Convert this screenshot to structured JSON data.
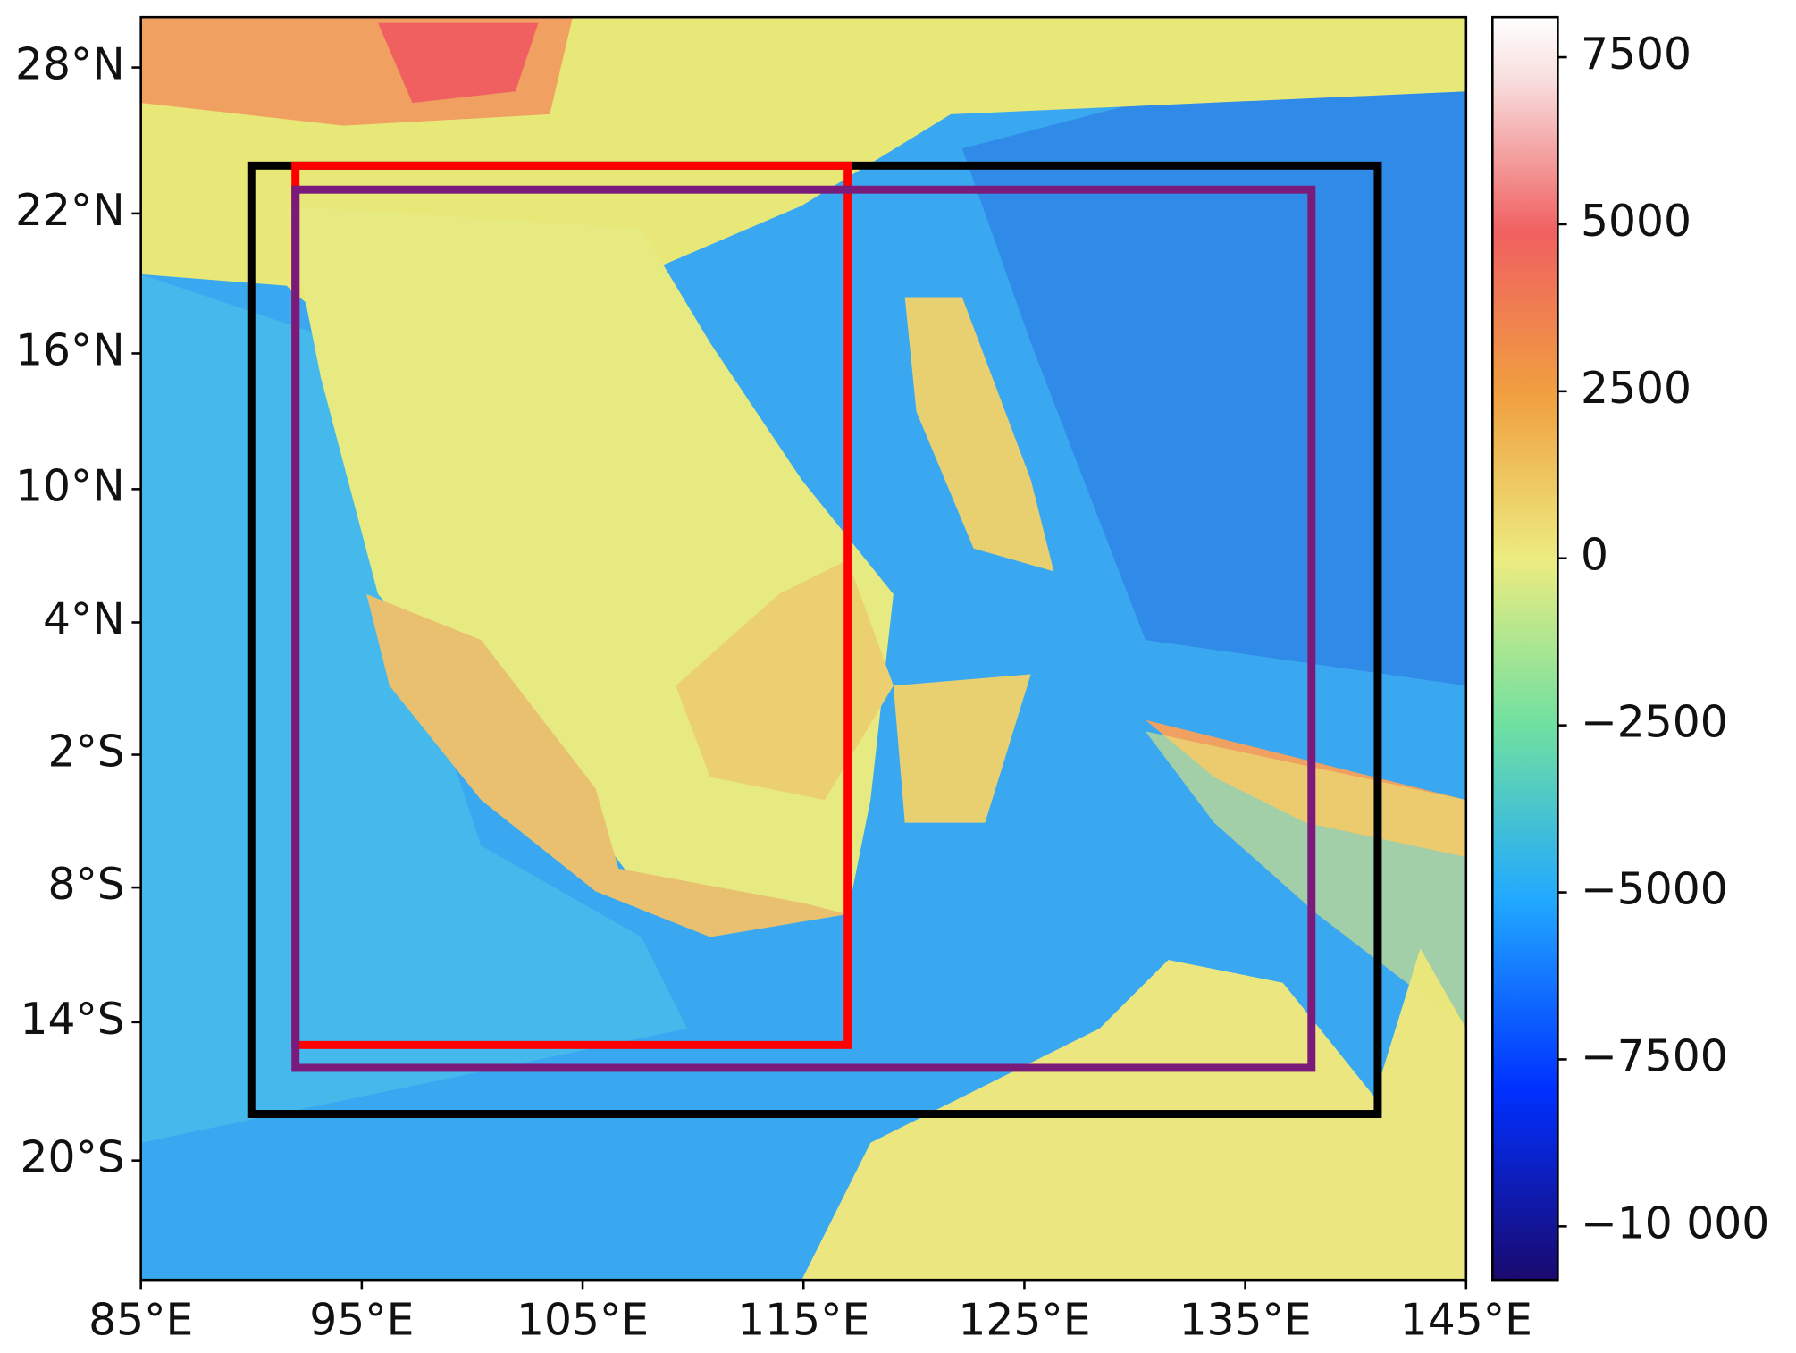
{
  "chart_data": {
    "type": "map",
    "xlim": [
      85,
      145
    ],
    "ylim": [
      -25,
      30
    ],
    "xticks": [
      {
        "value": 85,
        "label": "85°E"
      },
      {
        "value": 95,
        "label": "95°E"
      },
      {
        "value": 105,
        "label": "105°E"
      },
      {
        "value": 115,
        "label": "115°E"
      },
      {
        "value": 125,
        "label": "125°E"
      },
      {
        "value": 135,
        "label": "135°E"
      },
      {
        "value": 145,
        "label": "145°E"
      }
    ],
    "yticks": [
      {
        "value": 28,
        "label": "28°N"
      },
      {
        "value": 22,
        "label": "22°N"
      },
      {
        "value": 16,
        "label": "16°N"
      },
      {
        "value": 10,
        "label": "10°N"
      },
      {
        "value": 4,
        "label": "4°N"
      },
      {
        "value": -2,
        "label": "2°S"
      },
      {
        "value": -8,
        "label": "8°S"
      },
      {
        "value": -14,
        "label": "14°S"
      },
      {
        "value": -20,
        "label": "20°S"
      }
    ],
    "boxes": [
      {
        "color": "#000000",
        "lon": [
          90,
          141
        ],
        "lat": [
          -18,
          24
        ]
      },
      {
        "color": "#ff0000",
        "lon": [
          92,
          117
        ],
        "lat": [
          -15,
          24
        ]
      },
      {
        "color": "#7a1a7a",
        "lon": [
          92,
          138
        ],
        "lat": [
          -16,
          23
        ]
      }
    ],
    "colorbar": {
      "lim": [
        -10800,
        8100
      ],
      "ticks": [
        7500,
        5000,
        2500,
        0,
        {
          "value": -2500,
          "label": "−2500"
        },
        {
          "value": -5000,
          "label": "−5000"
        },
        {
          "value": -7500,
          "label": "−7500"
        },
        {
          "value": -10000,
          "label": "−10 000"
        }
      ]
    }
  }
}
